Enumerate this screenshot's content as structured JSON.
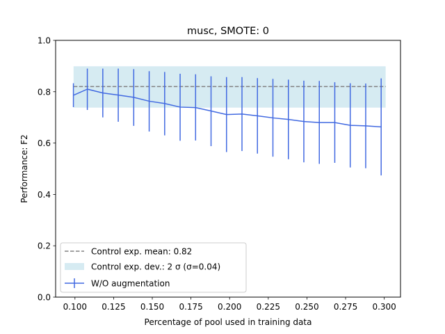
{
  "chart_data": {
    "type": "line",
    "title": "musc, SMOTE: 0",
    "xlabel": "Percentage of pool used in training data",
    "ylabel": "Performance: F2",
    "xlim": [
      0.0875,
      0.3105
    ],
    "ylim": [
      0.0,
      1.0
    ],
    "x_ticks": [
      0.1,
      0.125,
      0.15,
      0.175,
      0.2,
      0.225,
      0.25,
      0.275,
      0.3
    ],
    "x_tick_labels": [
      "0.100",
      "0.125",
      "0.150",
      "0.175",
      "0.200",
      "0.225",
      "0.250",
      "0.275",
      "0.300"
    ],
    "y_ticks": [
      0.0,
      0.2,
      0.4,
      0.6,
      0.8,
      1.0
    ],
    "y_tick_labels": [
      "0.0",
      "0.2",
      "0.4",
      "0.6",
      "0.8",
      "1.0"
    ],
    "grid": false,
    "legend_position": "lower-left",
    "control": {
      "label": "Control exp. mean: 0.82",
      "mean": 0.82,
      "band_label": "Control exp. dev.: 2 σ (σ=0.04)",
      "band": [
        0.738,
        0.899
      ],
      "x_range": [
        0.1,
        0.3
      ],
      "line_color": "#808080",
      "band_color": "#add8e6"
    },
    "series": [
      {
        "name": "W/O augmentation",
        "color": "#4169e1",
        "x": [
          0.099,
          0.108,
          0.118,
          0.128,
          0.138,
          0.148,
          0.158,
          0.168,
          0.178,
          0.188,
          0.198,
          0.208,
          0.218,
          0.228,
          0.238,
          0.248,
          0.258,
          0.268,
          0.278,
          0.288,
          0.298
        ],
        "y": [
          0.786,
          0.81,
          0.795,
          0.787,
          0.778,
          0.763,
          0.754,
          0.74,
          0.738,
          0.725,
          0.711,
          0.713,
          0.706,
          0.698,
          0.692,
          0.684,
          0.68,
          0.68,
          0.669,
          0.667,
          0.663
        ],
        "err_low": [
          0.74,
          0.729,
          0.7,
          0.683,
          0.667,
          0.645,
          0.63,
          0.609,
          0.61,
          0.588,
          0.565,
          0.569,
          0.559,
          0.547,
          0.537,
          0.525,
          0.519,
          0.523,
          0.505,
          0.502,
          0.474
        ],
        "err_high": [
          0.833,
          0.89,
          0.89,
          0.89,
          0.888,
          0.88,
          0.877,
          0.87,
          0.868,
          0.86,
          0.857,
          0.857,
          0.853,
          0.85,
          0.847,
          0.843,
          0.842,
          0.837,
          0.833,
          0.832,
          0.852
        ]
      }
    ]
  }
}
